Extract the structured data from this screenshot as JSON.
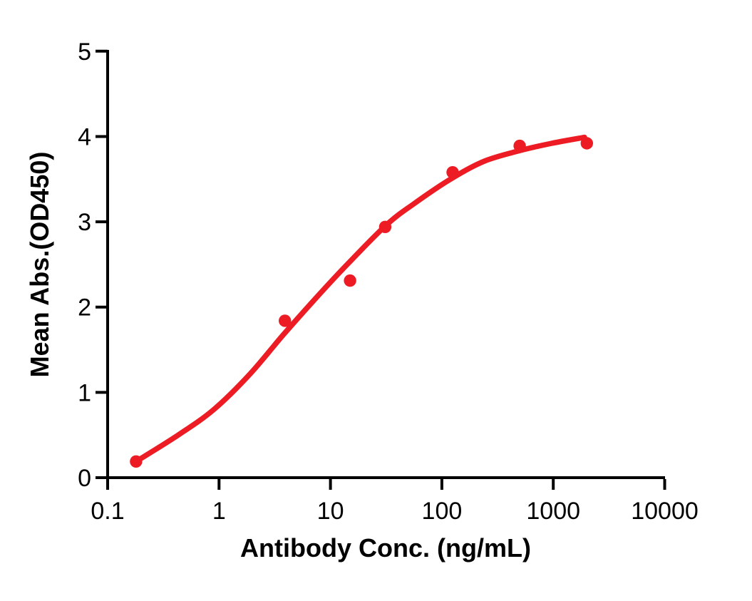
{
  "chart_data": {
    "type": "scatter",
    "title": "",
    "xlabel": "Antibody Conc. (ng/mL)",
    "ylabel": "Mean Abs.(OD450)",
    "x_scale": "log10",
    "y_scale": "linear",
    "xlim": [
      0.1,
      10000
    ],
    "ylim": [
      0,
      5
    ],
    "x_ticks": [
      0.1,
      1,
      10,
      100,
      1000,
      10000
    ],
    "x_tick_labels": [
      "0.1",
      "1",
      "10",
      "100",
      "1000",
      "10000"
    ],
    "y_ticks": [
      0,
      1,
      2,
      3,
      4,
      5
    ],
    "y_tick_labels": [
      "0",
      "1",
      "2",
      "3",
      "4",
      "5"
    ],
    "grid": false,
    "legend": "none",
    "colors": {
      "accent": "#ED1C24",
      "axis": "#000000",
      "background": "#FFFFFF"
    },
    "series": [
      {
        "name": "Mean Abs.(OD450) data points",
        "role": "scatter",
        "marker": "circle",
        "color": "#ED1C24",
        "points": [
          {
            "x": 0.18,
            "y": 0.19
          },
          {
            "x": 3.9,
            "y": 1.84
          },
          {
            "x": 15,
            "y": 2.31
          },
          {
            "x": 31,
            "y": 2.94
          },
          {
            "x": 125,
            "y": 3.58
          },
          {
            "x": 500,
            "y": 3.89
          },
          {
            "x": 2000,
            "y": 3.92
          }
        ]
      },
      {
        "name": "4PL fit curve",
        "role": "line",
        "color": "#ED1C24",
        "points": [
          {
            "x": 0.18,
            "y": 0.19
          },
          {
            "x": 0.43,
            "y": 0.5
          },
          {
            "x": 0.9,
            "y": 0.8
          },
          {
            "x": 1.88,
            "y": 1.21
          },
          {
            "x": 3.8,
            "y": 1.68
          },
          {
            "x": 7.0,
            "y": 2.07
          },
          {
            "x": 13.0,
            "y": 2.45
          },
          {
            "x": 31.0,
            "y": 2.95
          },
          {
            "x": 56.0,
            "y": 3.21
          },
          {
            "x": 123,
            "y": 3.51
          },
          {
            "x": 240,
            "y": 3.71
          },
          {
            "x": 486,
            "y": 3.83
          },
          {
            "x": 970,
            "y": 3.92
          },
          {
            "x": 1907,
            "y": 3.99
          }
        ]
      }
    ]
  }
}
